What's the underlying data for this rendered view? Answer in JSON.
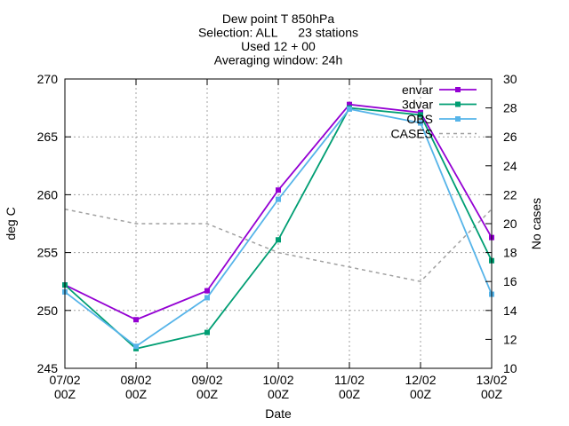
{
  "chart_data": {
    "type": "line",
    "title_lines": [
      "Dew point T 850hPa",
      "Selection: ALL      23 stations",
      "Used 12 + 00",
      "Averaging window: 24h"
    ],
    "xlabel": "Date",
    "ylabel": "deg C",
    "y2label": "No cases",
    "x_ticks": [
      [
        "07/02",
        "00Z"
      ],
      [
        "08/02",
        "00Z"
      ],
      [
        "09/02",
        "00Z"
      ],
      [
        "10/02",
        "00Z"
      ],
      [
        "11/02",
        "00Z"
      ],
      [
        "12/02",
        "00Z"
      ],
      [
        "13/02",
        "00Z"
      ]
    ],
    "ylim": [
      245,
      270
    ],
    "y_ticks": [
      245,
      250,
      255,
      260,
      265,
      270
    ],
    "y2lim": [
      10,
      30
    ],
    "y2_ticks": [
      10,
      12,
      14,
      16,
      18,
      20,
      22,
      24,
      26,
      28,
      30
    ],
    "grid": true,
    "legend_position": "top-right",
    "series": [
      {
        "name": "envar",
        "axis": "y",
        "color": "#9400d3",
        "marker": "square",
        "style": "solid",
        "values": [
          252.2,
          249.2,
          251.7,
          260.4,
          267.8,
          267.1,
          256.3
        ]
      },
      {
        "name": "3dvar",
        "axis": "y",
        "color": "#009e73",
        "marker": "square",
        "style": "solid",
        "values": [
          252.2,
          246.7,
          248.1,
          256.1,
          267.5,
          266.9,
          254.3
        ]
      },
      {
        "name": "OBS",
        "axis": "y",
        "color": "#56b4e9",
        "marker": "square",
        "style": "solid",
        "values": [
          251.6,
          246.9,
          251.1,
          259.6,
          267.4,
          266.2,
          251.4
        ]
      },
      {
        "name": "CASES",
        "axis": "y2",
        "color": "#a0a0a0",
        "marker": "none",
        "style": "dashed",
        "values": [
          21,
          20,
          20,
          18,
          17,
          16,
          21
        ]
      }
    ]
  }
}
